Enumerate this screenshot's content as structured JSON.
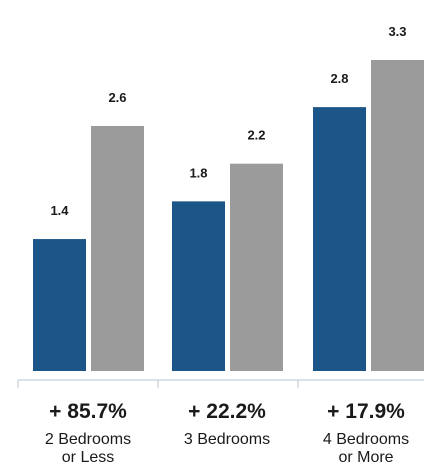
{
  "chart_data": {
    "type": "bar",
    "categories": [
      [
        "2 Bedrooms",
        "or Less"
      ],
      [
        "3 Bedrooms"
      ],
      [
        "4 Bedrooms",
        "or More"
      ]
    ],
    "series": [
      {
        "values": [
          1.4,
          1.8,
          2.8
        ]
      },
      {
        "values": [
          2.6,
          2.2,
          3.3
        ]
      }
    ],
    "changes": [
      "+ 85.7%",
      "+ 22.2%",
      "+ 17.9%"
    ],
    "ylim": [
      0,
      3.3
    ],
    "grid": false,
    "legend": "none"
  },
  "colors": {
    "series_1": "#1c5587",
    "series_2": "#9b9b9b",
    "axis": "#cfd8e3"
  }
}
